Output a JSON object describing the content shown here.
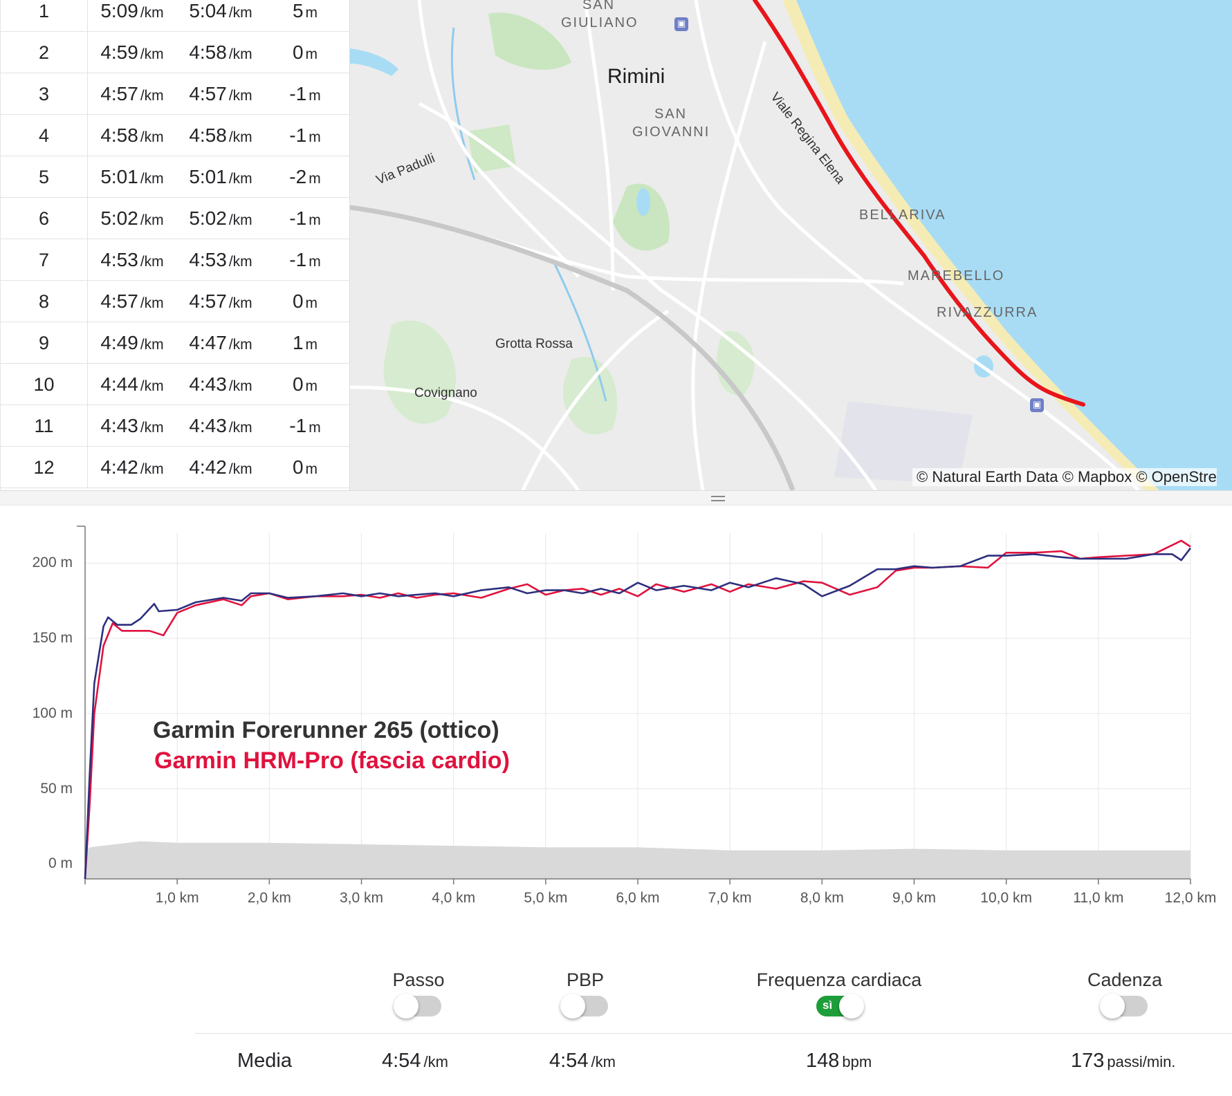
{
  "splits": [
    {
      "km": "1",
      "pace": "5:09",
      "gap": "5:04",
      "elev": "5"
    },
    {
      "km": "2",
      "pace": "4:59",
      "gap": "4:58",
      "elev": "0"
    },
    {
      "km": "3",
      "pace": "4:57",
      "gap": "4:57",
      "elev": "-1"
    },
    {
      "km": "4",
      "pace": "4:58",
      "gap": "4:58",
      "elev": "-1"
    },
    {
      "km": "5",
      "pace": "5:01",
      "gap": "5:01",
      "elev": "-2"
    },
    {
      "km": "6",
      "pace": "5:02",
      "gap": "5:02",
      "elev": "-1"
    },
    {
      "km": "7",
      "pace": "4:53",
      "gap": "4:53",
      "elev": "-1"
    },
    {
      "km": "8",
      "pace": "4:57",
      "gap": "4:57",
      "elev": "0"
    },
    {
      "km": "9",
      "pace": "4:49",
      "gap": "4:47",
      "elev": "1"
    },
    {
      "km": "10",
      "pace": "4:44",
      "gap": "4:43",
      "elev": "0"
    },
    {
      "km": "11",
      "pace": "4:43",
      "gap": "4:43",
      "elev": "-1"
    },
    {
      "km": "12",
      "pace": "4:42",
      "gap": "4:42",
      "elev": "0"
    }
  ],
  "units": {
    "pace": "/km",
    "elev": "m"
  },
  "map": {
    "labels": {
      "san_giuliano_1": "SAN",
      "san_giuliano_2": "GIULIANO",
      "rimini": "Rimini",
      "san_giovanni_1": "SAN",
      "san_giovanni_2": "GIOVANNI",
      "viale": "Viale Regina Elena",
      "via_padulli": "Via Padulli",
      "bellariva": "BELLARIVA",
      "marebello": "MAREBELLO",
      "rivazzurra": "RIVAZZURRA",
      "grotta_rossa": "Grotta Rossa",
      "covignano": "Covignano"
    },
    "attribution": "© Natural Earth Data © Mapbox © OpenStre",
    "colors": {
      "sea": "#a8dcf5",
      "beach": "#f5ecb5",
      "park": "#c9e6c0",
      "route": "#e8151b",
      "land": "#ececec"
    }
  },
  "chart_data": {
    "type": "line",
    "x_label_suffix": " km",
    "y_label_suffix": " m",
    "xlim": [
      0,
      12
    ],
    "ylim": [
      -10,
      220
    ],
    "x_ticks": [
      1.0,
      2.0,
      3.0,
      4.0,
      5.0,
      6.0,
      7.0,
      8.0,
      9.0,
      10.0,
      11.0,
      12.0
    ],
    "x_tick_labels": [
      "1,0 km",
      "2,0 km",
      "3,0 km",
      "4,0 km",
      "5,0 km",
      "6,0 km",
      "7,0 km",
      "8,0 km",
      "9,0 km",
      "10,0 km",
      "11,0 km",
      "12,0 km"
    ],
    "y_ticks": [
      0,
      50,
      100,
      150,
      200
    ],
    "y_tick_labels": [
      "0 m",
      "50 m",
      "100 m",
      "150 m",
      "200 m"
    ],
    "grid": true,
    "series": [
      {
        "name": "Garmin Forerunner 265 (ottico)",
        "color": "#2c2f7e",
        "x": [
          0,
          0.05,
          0.1,
          0.2,
          0.25,
          0.35,
          0.5,
          0.6,
          0.75,
          0.8,
          1.0,
          1.2,
          1.5,
          1.7,
          1.8,
          2.0,
          2.2,
          2.5,
          2.8,
          3.0,
          3.2,
          3.4,
          3.6,
          3.8,
          4.0,
          4.3,
          4.6,
          4.8,
          5.0,
          5.2,
          5.4,
          5.6,
          5.8,
          6.0,
          6.2,
          6.5,
          6.8,
          7.0,
          7.2,
          7.5,
          7.8,
          8.0,
          8.3,
          8.6,
          8.8,
          9.0,
          9.2,
          9.5,
          9.8,
          10.0,
          10.3,
          10.6,
          10.8,
          11.0,
          11.3,
          11.6,
          11.8,
          11.9,
          12.0
        ],
        "y": [
          -10,
          60,
          120,
          158,
          164,
          159,
          159,
          163,
          173,
          168,
          169,
          174,
          177,
          175,
          180,
          180,
          177,
          178,
          180,
          178,
          180,
          178,
          179,
          180,
          178,
          182,
          184,
          180,
          182,
          182,
          180,
          183,
          180,
          187,
          182,
          185,
          182,
          187,
          184,
          190,
          186,
          178,
          185,
          196,
          196,
          198,
          197,
          198,
          205,
          205,
          206,
          204,
          203,
          203,
          203,
          206,
          206,
          202,
          210
        ]
      },
      {
        "name": "Garmin HRM-Pro (fascia cardio)",
        "color": "#e0123e",
        "x": [
          0,
          0.05,
          0.1,
          0.2,
          0.3,
          0.4,
          0.5,
          0.7,
          0.85,
          1.0,
          1.2,
          1.5,
          1.7,
          1.8,
          2.0,
          2.2,
          2.5,
          2.8,
          3.0,
          3.2,
          3.4,
          3.6,
          3.8,
          4.0,
          4.3,
          4.6,
          4.8,
          5.0,
          5.2,
          5.4,
          5.6,
          5.8,
          6.0,
          6.2,
          6.5,
          6.8,
          7.0,
          7.2,
          7.5,
          7.8,
          8.0,
          8.3,
          8.6,
          8.8,
          9.0,
          9.2,
          9.5,
          9.8,
          10.0,
          10.3,
          10.6,
          10.8,
          11.0,
          11.3,
          11.6,
          11.8,
          11.9,
          12.0
        ],
        "y": [
          -10,
          40,
          100,
          145,
          160,
          155,
          155,
          155,
          152,
          167,
          172,
          176,
          172,
          178,
          180,
          176,
          178,
          178,
          179,
          177,
          180,
          177,
          179,
          180,
          177,
          183,
          186,
          179,
          182,
          183,
          179,
          183,
          178,
          186,
          181,
          186,
          181,
          186,
          183,
          188,
          187,
          179,
          184,
          195,
          197,
          197,
          198,
          197,
          207,
          207,
          208,
          203,
          204,
          205,
          206,
          212,
          215,
          211
        ]
      },
      {
        "name": "elevation",
        "color": "#d9d9d9",
        "x": [
          0,
          0.05,
          0.6,
          1.0,
          2.0,
          3.0,
          4.0,
          5.0,
          6.0,
          7.0,
          8.0,
          9.0,
          10.0,
          11.0,
          12.0
        ],
        "y": [
          8,
          11,
          15,
          14,
          14,
          13,
          12,
          11,
          11,
          9,
          9,
          10,
          9,
          9,
          9
        ]
      }
    ]
  },
  "legend": {
    "line1": "Garmin Forerunner 265 (ottico)",
    "line2": "Garmin HRM-Pro (fascia cardio)"
  },
  "toggles": [
    {
      "label": "Passo",
      "on": false,
      "on_text": ""
    },
    {
      "label": "PBP",
      "on": false,
      "on_text": ""
    },
    {
      "label": "Frequenza cardiaca",
      "on": true,
      "on_text": "sì"
    },
    {
      "label": "Cadenza",
      "on": false,
      "on_text": ""
    }
  ],
  "summary": {
    "label": "Media",
    "pace_value": "4:54",
    "pace_unit": "/km",
    "gap_value": "4:54",
    "gap_unit": "/km",
    "hr_value": "148",
    "hr_unit": "bpm",
    "cad_value": "173",
    "cad_unit": "passi/min."
  }
}
